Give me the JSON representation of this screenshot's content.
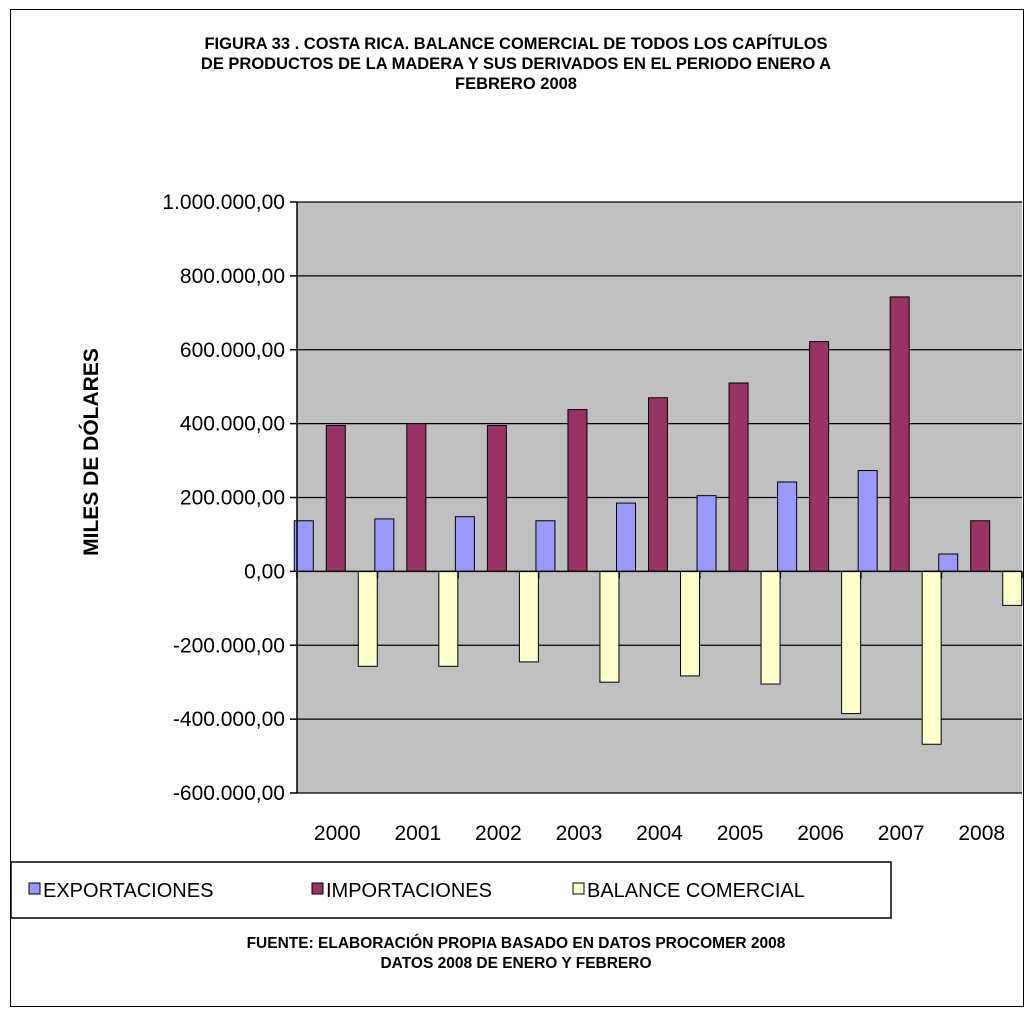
{
  "chart_data": {
    "type": "bar",
    "title_lines": [
      "FIGURA 33 . COSTA RICA. BALANCE COMERCIAL DE TODOS LOS CAPÍTULOS",
      "DE PRODUCTOS DE LA MADERA Y SUS DERIVADOS EN EL PERIODO ENERO A",
      "FEBRERO 2008"
    ],
    "ylabel": "MILES DE DÓLARES",
    "ylim": [
      -600000,
      1000000
    ],
    "y_ticks": [
      1000000,
      800000,
      600000,
      400000,
      200000,
      0,
      -200000,
      -400000,
      -600000
    ],
    "y_tick_labels": [
      "1.000.000,00",
      "800.000,00",
      "600.000,00",
      "400.000,00",
      "200.000,00",
      "0,00",
      "-200.000,00",
      "-400.000,00",
      "-600.000,00"
    ],
    "categories": [
      "2000",
      "2001",
      "2002",
      "2003",
      "2004",
      "2005",
      "2006",
      "2007",
      "2008"
    ],
    "series": [
      {
        "name": "EXPORTACIONES",
        "color": "#9999FF",
        "values": [
          137000,
          142000,
          148000,
          137000,
          185000,
          205000,
          242000,
          273000,
          47000
        ]
      },
      {
        "name": "IMPORTACIONES",
        "color": "#993366",
        "values": [
          395000,
          400000,
          395000,
          438000,
          470000,
          510000,
          622000,
          743000,
          137000
        ]
      },
      {
        "name": "BALANCE COMERCIAL",
        "color": "#FFFFCC",
        "values": [
          -257000,
          -257000,
          -245000,
          -300000,
          -283000,
          -305000,
          -385000,
          -468000,
          -92000
        ]
      }
    ],
    "grid": true,
    "plot_background": "#C0C0C0",
    "legend_position": "bottom",
    "source_lines": [
      "FUENTE: ELABORACIÓN PROPIA BASADO EN DATOS PROCOMER 2008",
      "DATOS 2008 DE ENERO Y FEBRERO"
    ]
  }
}
